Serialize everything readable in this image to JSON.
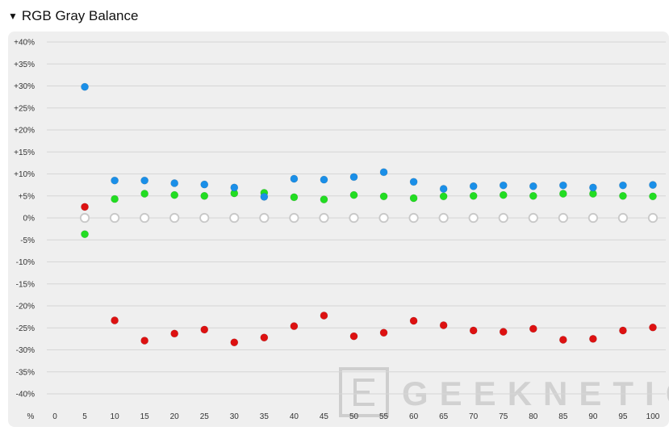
{
  "section": {
    "title": "RGB Gray Balance",
    "toggle_icon": "triangle-down-icon"
  },
  "watermark": {
    "text": "GEEKNETIC"
  },
  "chart_data": {
    "type": "scatter",
    "title": "RGB Gray Balance",
    "x_axis_unit": "%",
    "x": [
      0,
      5,
      10,
      15,
      20,
      25,
      30,
      35,
      40,
      45,
      50,
      55,
      60,
      65,
      70,
      75,
      80,
      85,
      90,
      95,
      100
    ],
    "x_tick_labels": [
      "%",
      "0",
      "5",
      "10",
      "15",
      "20",
      "25",
      "30",
      "35",
      "40",
      "45",
      "50",
      "55",
      "60",
      "65",
      "70",
      "75",
      "80",
      "85",
      "90",
      "95",
      "100"
    ],
    "y_ticks": [
      40,
      35,
      30,
      25,
      20,
      15,
      10,
      5,
      0,
      -5,
      -10,
      -15,
      -20,
      -25,
      -30,
      -35,
      -40
    ],
    "y_tick_labels": [
      "+40%",
      "+35%",
      "+30%",
      "+25%",
      "+20%",
      "+15%",
      "+10%",
      "+5%",
      "0%",
      "-5%",
      "-10%",
      "-15%",
      "-20%",
      "-25%",
      "-30%",
      "-35%",
      "-40%"
    ],
    "ylim": [
      -40,
      40
    ],
    "grid": true,
    "series": [
      {
        "name": "Blue",
        "color": "#1a8fe8",
        "points": [
          [
            5,
            29.8
          ],
          [
            10,
            8.5
          ],
          [
            15,
            8.5
          ],
          [
            20,
            7.9
          ],
          [
            25,
            7.6
          ],
          [
            30,
            6.9
          ],
          [
            35,
            4.8
          ],
          [
            40,
            8.9
          ],
          [
            45,
            8.7
          ],
          [
            50,
            9.3
          ],
          [
            55,
            10.4
          ],
          [
            60,
            8.2
          ],
          [
            65,
            6.6
          ],
          [
            70,
            7.2
          ],
          [
            75,
            7.4
          ],
          [
            80,
            7.2
          ],
          [
            85,
            7.4
          ],
          [
            90,
            6.9
          ],
          [
            95,
            7.4
          ],
          [
            100,
            7.5
          ]
        ]
      },
      {
        "name": "Green",
        "color": "#22dd22",
        "points": [
          [
            5,
            -3.7
          ],
          [
            10,
            4.3
          ],
          [
            15,
            5.5
          ],
          [
            20,
            5.2
          ],
          [
            25,
            5.0
          ],
          [
            30,
            5.6
          ],
          [
            35,
            5.7
          ],
          [
            40,
            4.7
          ],
          [
            45,
            4.2
          ],
          [
            50,
            5.2
          ],
          [
            55,
            4.9
          ],
          [
            60,
            4.5
          ],
          [
            65,
            4.9
          ],
          [
            70,
            5.0
          ],
          [
            75,
            5.2
          ],
          [
            80,
            5.0
          ],
          [
            85,
            5.5
          ],
          [
            90,
            5.5
          ],
          [
            95,
            5.0
          ],
          [
            100,
            4.9
          ]
        ]
      },
      {
        "name": "Red",
        "color": "#dd1111",
        "points": [
          [
            5,
            2.5
          ],
          [
            10,
            -23.3
          ],
          [
            15,
            -27.9
          ],
          [
            20,
            -26.3
          ],
          [
            25,
            -25.4
          ],
          [
            30,
            -28.3
          ],
          [
            35,
            -27.2
          ],
          [
            40,
            -24.6
          ],
          [
            45,
            -22.2
          ],
          [
            50,
            -26.9
          ],
          [
            55,
            -26.1
          ],
          [
            60,
            -23.4
          ],
          [
            65,
            -24.4
          ],
          [
            70,
            -25.6
          ],
          [
            75,
            -25.9
          ],
          [
            80,
            -25.2
          ],
          [
            85,
            -27.7
          ],
          [
            90,
            -27.5
          ],
          [
            95,
            -25.6
          ],
          [
            100,
            -24.9
          ]
        ]
      },
      {
        "name": "Reference",
        "color": "#c8c8c8",
        "hollow": true,
        "points": [
          [
            5,
            0
          ],
          [
            10,
            0
          ],
          [
            15,
            0
          ],
          [
            20,
            0
          ],
          [
            25,
            0
          ],
          [
            30,
            0
          ],
          [
            35,
            0
          ],
          [
            40,
            0
          ],
          [
            45,
            0
          ],
          [
            50,
            0
          ],
          [
            55,
            0
          ],
          [
            60,
            0
          ],
          [
            65,
            0
          ],
          [
            70,
            0
          ],
          [
            75,
            0
          ],
          [
            80,
            0
          ],
          [
            85,
            0
          ],
          [
            90,
            0
          ],
          [
            95,
            0
          ],
          [
            100,
            0
          ]
        ]
      }
    ]
  }
}
